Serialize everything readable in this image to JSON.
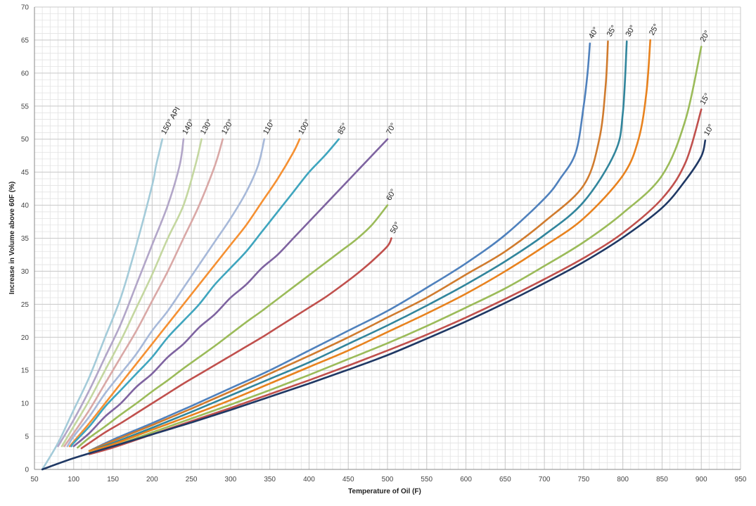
{
  "chart_data": {
    "type": "line",
    "xlabel": "Temperature of Oil (F)",
    "ylabel": "Increase in Volume above 60F (%)",
    "xlim": [
      50,
      950
    ],
    "ylim": [
      0,
      70
    ],
    "x_ticks": [
      50,
      100,
      150,
      200,
      250,
      300,
      350,
      400,
      450,
      500,
      550,
      600,
      650,
      700,
      750,
      800,
      850,
      900,
      950
    ],
    "y_ticks": [
      0,
      5,
      10,
      15,
      20,
      25,
      30,
      35,
      40,
      45,
      50,
      55,
      60,
      65,
      70
    ],
    "grid": true,
    "series": [
      {
        "name": "150° API",
        "color": "#a4cbd9",
        "x": [
          60,
          80,
          100,
          120,
          140,
          160,
          180,
          200,
          205,
          210,
          213
        ],
        "y": [
          0,
          4,
          9,
          14,
          20,
          26,
          34,
          43,
          46,
          48.5,
          50
        ]
      },
      {
        "name": "140°",
        "color": "#b2a6c8",
        "x": [
          80,
          100,
          120,
          140,
          160,
          180,
          200,
          220,
          235,
          240
        ],
        "y": [
          3.5,
          7.5,
          12,
          17,
          22,
          28,
          34,
          40,
          46,
          50
        ]
      },
      {
        "name": "130°",
        "color": "#c4d7a0",
        "x": [
          85,
          100,
          120,
          140,
          160,
          180,
          200,
          220,
          240,
          255,
          263
        ],
        "y": [
          3.5,
          6.5,
          10.5,
          15,
          19.5,
          24.5,
          29.5,
          35,
          40,
          46,
          50
        ]
      },
      {
        "name": "120°",
        "color": "#d9a8a6",
        "x": [
          88,
          100,
          120,
          140,
          160,
          180,
          200,
          220,
          240,
          260,
          280,
          290
        ],
        "y": [
          3.5,
          5.5,
          9,
          13,
          17,
          21,
          25.5,
          30,
          35,
          40,
          46,
          50
        ]
      },
      {
        "name": "110°",
        "color": "#a7b9d9",
        "x": [
          92,
          100,
          120,
          140,
          160,
          180,
          200,
          220,
          240,
          260,
          280,
          300,
          320,
          335,
          343
        ],
        "y": [
          3.5,
          5,
          8,
          11.5,
          14.5,
          17.5,
          21,
          24,
          27.5,
          31,
          34.5,
          38,
          42,
          46,
          50
        ]
      },
      {
        "name": "100°",
        "color": "#f59032",
        "x": [
          95,
          100,
          120,
          140,
          160,
          180,
          200,
          220,
          240,
          260,
          280,
          300,
          320,
          340,
          360,
          380,
          388
        ],
        "y": [
          3.5,
          4.2,
          7,
          10,
          13,
          16,
          19,
          22,
          25,
          28,
          31,
          34,
          37,
          40.5,
          44,
          48,
          50
        ]
      },
      {
        "name": "85°",
        "color": "#3fa5be",
        "x": [
          97,
          100,
          120,
          140,
          160,
          180,
          200,
          220,
          240,
          260,
          280,
          300,
          320,
          340,
          360,
          380,
          400,
          420,
          438
        ],
        "y": [
          3.5,
          4,
          6.5,
          9.5,
          12,
          14.5,
          17,
          20,
          22.5,
          25,
          28,
          30.5,
          33,
          36,
          39,
          42,
          45,
          47.5,
          50
        ]
      },
      {
        "name": "70°",
        "color": "#7e63a0",
        "x": [
          100,
          120,
          140,
          160,
          180,
          200,
          220,
          240,
          260,
          280,
          300,
          320,
          340,
          360,
          380,
          400,
          420,
          440,
          460,
          480,
          500
        ],
        "y": [
          3.5,
          5.5,
          8,
          10,
          12.5,
          14.5,
          17,
          19,
          21.5,
          23.5,
          26,
          28,
          30.5,
          32.5,
          35,
          37.5,
          40,
          42.5,
          45,
          47.5,
          50
        ]
      },
      {
        "name": "60°",
        "color": "#9bbb59",
        "x": [
          105,
          120,
          140,
          160,
          180,
          200,
          220,
          240,
          260,
          280,
          300,
          320,
          340,
          360,
          380,
          400,
          420,
          440,
          460,
          480,
          500
        ],
        "y": [
          3.3,
          4.8,
          6.5,
          8.3,
          10,
          11.8,
          13.5,
          15.3,
          17,
          18.7,
          20.5,
          22.3,
          24,
          25.8,
          27.6,
          29.4,
          31.2,
          33,
          34.8,
          37,
          40
        ]
      },
      {
        "name": "50°",
        "color": "#c0504d",
        "x": [
          110,
          120,
          140,
          160,
          180,
          200,
          220,
          240,
          260,
          280,
          300,
          320,
          340,
          360,
          380,
          400,
          420,
          440,
          460,
          480,
          500,
          505
        ],
        "y": [
          3.2,
          4,
          5.6,
          7,
          8.5,
          10,
          11.5,
          13,
          14.4,
          15.8,
          17.2,
          18.6,
          20,
          21.5,
          23,
          24.5,
          26,
          27.7,
          29.5,
          31.5,
          33.8,
          35
        ]
      },
      {
        "name": "40°",
        "color": "#4f81bd",
        "x": [
          120,
          150,
          200,
          250,
          300,
          350,
          400,
          450,
          500,
          550,
          600,
          650,
          700,
          720,
          740,
          750,
          755,
          758
        ],
        "y": [
          2.8,
          4.5,
          7,
          9.6,
          12.3,
          15,
          18,
          21,
          24,
          27.5,
          31.2,
          35.5,
          41,
          44,
          48,
          55,
          60,
          64.5
        ]
      },
      {
        "name": "35°",
        "color": "#d07b2e",
        "x": [
          120,
          150,
          200,
          250,
          300,
          350,
          400,
          450,
          500,
          550,
          600,
          650,
          700,
          750,
          770,
          778,
          781
        ],
        "y": [
          2.8,
          4.3,
          6.7,
          9.2,
          11.8,
          14.5,
          17.2,
          20,
          23,
          26,
          29.5,
          33,
          37.5,
          43,
          50,
          58,
          64.8
        ]
      },
      {
        "name": "30°",
        "color": "#31859c",
        "x": [
          120,
          150,
          200,
          250,
          300,
          350,
          400,
          450,
          500,
          550,
          600,
          650,
          700,
          750,
          790,
          800,
          805
        ],
        "y": [
          2.8,
          4,
          6.3,
          8.7,
          11.2,
          13.7,
          16.2,
          19,
          21.8,
          24.8,
          28,
          31.5,
          35.5,
          40.5,
          48,
          54,
          64.8
        ]
      },
      {
        "name": "25°",
        "color": "#e8821e",
        "x": [
          120,
          150,
          200,
          250,
          300,
          350,
          400,
          450,
          500,
          550,
          600,
          650,
          700,
          750,
          800,
          820,
          830,
          835
        ],
        "y": [
          2.8,
          3.8,
          6,
          8.2,
          10.5,
          13,
          15.5,
          18,
          20.8,
          23.6,
          26.6,
          30,
          33.8,
          38,
          44.5,
          50,
          57,
          65
        ]
      },
      {
        "name": "20°",
        "color": "#9bbb59",
        "x": [
          120,
          150,
          200,
          250,
          300,
          350,
          400,
          450,
          500,
          550,
          600,
          650,
          700,
          750,
          800,
          850,
          880,
          900
        ],
        "y": [
          2.5,
          3.5,
          5.6,
          7.7,
          9.8,
          12,
          14.3,
          16.7,
          19.1,
          21.7,
          24.5,
          27.4,
          30.8,
          34.4,
          38.8,
          44.5,
          53,
          64
        ]
      },
      {
        "name": "15°",
        "color": "#c0504d",
        "x": [
          120,
          150,
          200,
          250,
          300,
          350,
          400,
          450,
          500,
          550,
          600,
          650,
          700,
          750,
          800,
          850,
          880,
          900
        ],
        "y": [
          2.3,
          3.3,
          5.3,
          7.3,
          9.3,
          11.4,
          13.5,
          15.7,
          18,
          20.4,
          23,
          25.8,
          28.8,
          32,
          35.8,
          41,
          46.5,
          54.5
        ]
      },
      {
        "name": "10°",
        "color": "#1f3864",
        "x": [
          60,
          100,
          150,
          200,
          250,
          300,
          350,
          400,
          450,
          500,
          550,
          600,
          650,
          700,
          750,
          800,
          850,
          880,
          900,
          905
        ],
        "y": [
          0,
          1.7,
          3.5,
          5.3,
          7.1,
          9,
          11,
          13,
          15.1,
          17.3,
          19.8,
          22.4,
          25.2,
          28.2,
          31.4,
          35.1,
          39.6,
          43.8,
          47.4,
          49.8
        ]
      }
    ]
  }
}
